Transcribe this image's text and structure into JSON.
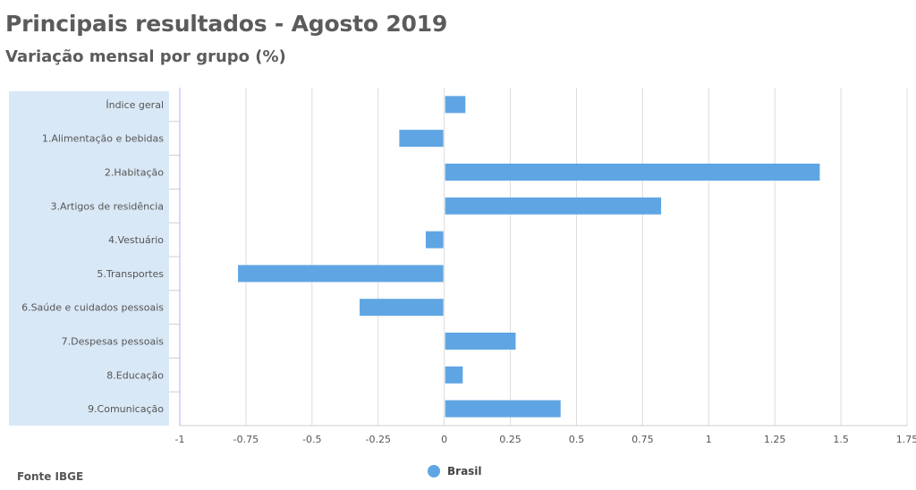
{
  "header": {
    "title": "Principais resultados - Agosto 2019",
    "subtitle": "Variação mensal por grupo (%)"
  },
  "footer": {
    "source": "Fonte IBGE"
  },
  "colors": {
    "bar": "#5fa5e3",
    "label_panel": "#d9e8f6",
    "grid": "#dcdcdc",
    "axis": "#aab4ff"
  },
  "chart_data": {
    "type": "bar",
    "orientation": "horizontal",
    "categories": [
      "Índice geral",
      "1.Alimentação e bebidas",
      "2.Habitação",
      "3.Artigos de residência",
      "4.Vestuário",
      "5.Transportes",
      "6.Saúde e cuidados pessoais",
      "7.Despesas pessoais",
      "8.Educação",
      "9.Comunicação"
    ],
    "series": [
      {
        "name": "Brasil",
        "values": [
          0.08,
          -0.17,
          1.42,
          0.82,
          -0.07,
          -0.78,
          -0.32,
          0.27,
          0.07,
          0.44
        ]
      }
    ],
    "xlim": [
      -1,
      1.75
    ],
    "xticks": [
      -1,
      -0.75,
      -0.5,
      -0.25,
      0,
      0.25,
      0.5,
      0.75,
      1,
      1.25,
      1.5,
      1.75
    ],
    "xtick_labels": [
      "-1",
      "-0.75",
      "-0.5",
      "-0.25",
      "0",
      "0.25",
      "0.5",
      "0.75",
      "1",
      "1.25",
      "1.5",
      "1.75"
    ],
    "grid": true,
    "legend": "bottom-center"
  }
}
